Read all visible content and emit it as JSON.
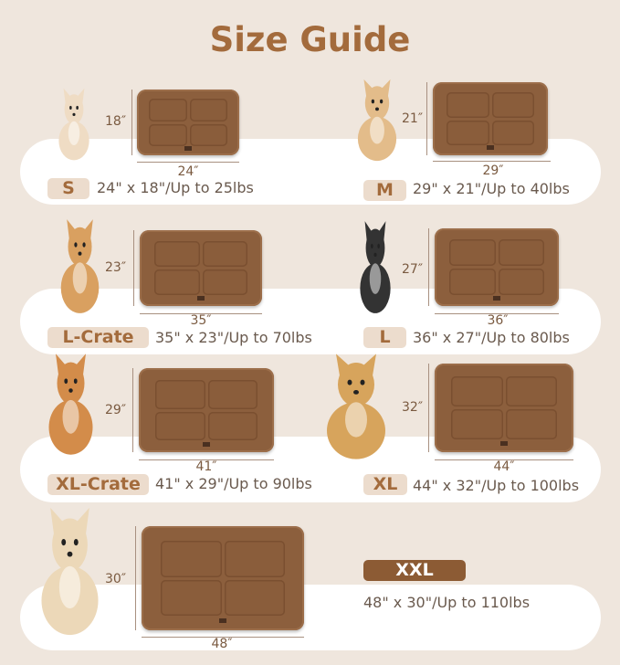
{
  "title": "Size Guide",
  "colors": {
    "background": "#efe6dd",
    "title": "#a36b3c",
    "mat": "#8c5f3d",
    "badge": "#ecdccd",
    "badge_dark": "#8c5b34"
  },
  "sizes": [
    {
      "label": "S",
      "height": "18″",
      "width": "24″",
      "spec": "24\" x 18\"/Up to 25lbs"
    },
    {
      "label": "M",
      "height": "21″",
      "width": "29″",
      "spec": "29\" x 21\"/Up to 40lbs"
    },
    {
      "label": "L-Crate",
      "height": "23″",
      "width": "35″",
      "spec": "35\" x 23\"/Up to 70lbs"
    },
    {
      "label": "L",
      "height": "27″",
      "width": "36″",
      "spec": "36\" x 27\"/Up to 80lbs"
    },
    {
      "label": "XL-Crate",
      "height": "29″",
      "width": "41″",
      "spec": "41\" x 29\"/Up to 90lbs"
    },
    {
      "label": "XL",
      "height": "32″",
      "width": "44″",
      "spec": "44\" x 32\"/Up to 100lbs"
    },
    {
      "label": "XXL",
      "height": "30″",
      "width": "48″",
      "spec": "48\" x 30\"/Up to 110lbs"
    }
  ]
}
